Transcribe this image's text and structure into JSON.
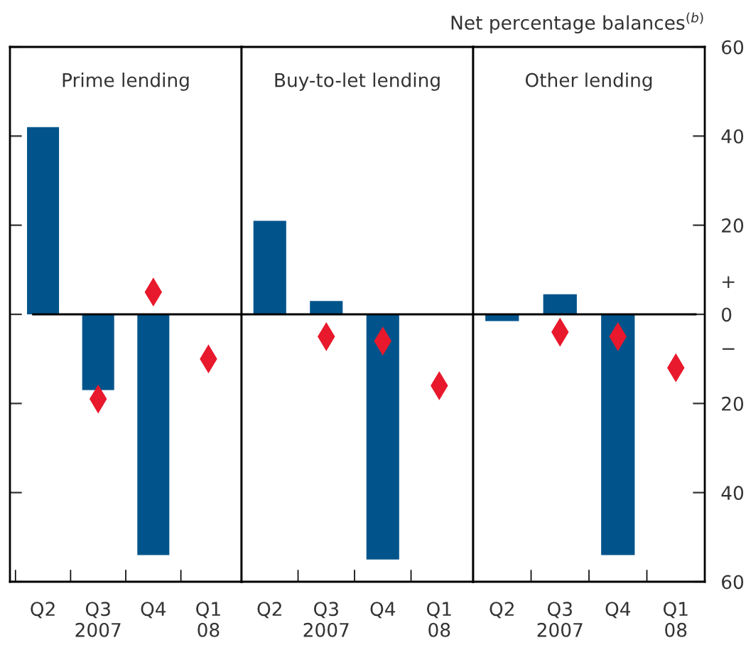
{
  "chart_data": [
    {
      "type": "bar",
      "title": "Prime lending",
      "categories": [
        "Q2",
        "Q3\n2007",
        "Q4",
        "Q1\n08"
      ],
      "series": [
        {
          "color": "#00548b",
          "values": [
            42,
            -17,
            -54,
            null
          ]
        },
        {
          "type": "scatter",
          "color": "#e8192c",
          "marker": "diamond",
          "values": [
            null,
            -19,
            5,
            -10
          ]
        }
      ],
      "ylim": [
        -60,
        60
      ],
      "yticks": [
        {
          "value": -60,
          "label": null
        },
        {
          "value": -40,
          "label": null
        },
        {
          "value": -20,
          "label": null
        },
        {
          "value": 0,
          "label": null
        },
        {
          "value": 20,
          "label": null
        },
        {
          "value": 40,
          "label": null
        },
        {
          "value": 60,
          "label": null
        }
      ],
      "ref_lines": [
        {
          "axis": "y",
          "value": 0,
          "color": "#000000"
        }
      ],
      "tick_labels": "x",
      "grid": false,
      "legend": false
    },
    {
      "type": "bar",
      "title": "Buy-to-let lending",
      "categories": [
        "Q2",
        "Q3\n2007",
        "Q4",
        "Q1\n08"
      ],
      "series": [
        {
          "color": "#00548b",
          "values": [
            21,
            3,
            -55,
            null
          ]
        },
        {
          "type": "scatter",
          "color": "#e8192c",
          "marker": "diamond",
          "values": [
            null,
            -5,
            -6,
            -16
          ]
        }
      ],
      "ylim": [
        -60,
        60
      ],
      "ref_lines": [
        {
          "axis": "y",
          "value": 0,
          "color": "#000000"
        }
      ],
      "tick_labels": "x",
      "grid": false,
      "legend": false
    },
    {
      "type": "bar",
      "title": "Other lending",
      "ylabel": "Net percentage balances$^{(b)}$",
      "categories": [
        "Q2",
        "Q3\n2007",
        "Q4",
        "Q1\n08"
      ],
      "series": [
        {
          "color": "#00548b",
          "values": [
            -1.5,
            4.5,
            -54,
            null
          ]
        },
        {
          "type": "scatter",
          "color": "#e8192c",
          "marker": "diamond",
          "values": [
            null,
            -4,
            -5,
            -12
          ]
        }
      ],
      "ylim": [
        -60,
        60
      ],
      "yticks": [
        {
          "value": -60,
          "label": "60"
        },
        {
          "value": -40,
          "label": "40"
        },
        {
          "value": -20,
          "label": "20"
        },
        {
          "value": -7.5,
          "label": "−"
        },
        0,
        {
          "value": 7.5,
          "label": "+"
        },
        {
          "value": 20,
          "label": "20"
        },
        {
          "value": 40,
          "label": "40"
        },
        {
          "value": 60,
          "label": "60"
        }
      ],
      "ref_lines": [
        {
          "axis": "y",
          "value": 0,
          "color": "#000000"
        }
      ],
      "grid": false,
      "legend": false
    }
  ]
}
